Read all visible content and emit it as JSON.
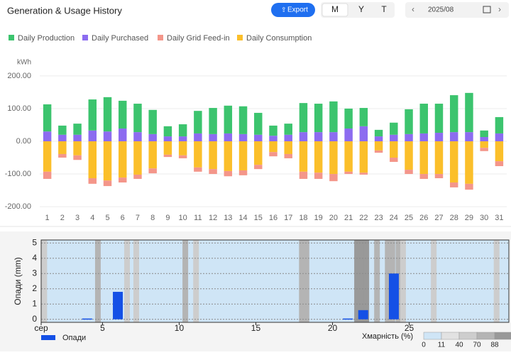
{
  "header": {
    "title": "Generation & Usage History",
    "export": "Export",
    "tabs": [
      "M",
      "Y",
      "T"
    ],
    "date": "2025/08"
  },
  "chart_data": [
    {
      "type": "bar",
      "stacked": true,
      "y_unit": "kWh",
      "grid": true,
      "categories": [
        1,
        2,
        3,
        4,
        5,
        6,
        7,
        8,
        9,
        10,
        11,
        12,
        13,
        14,
        15,
        16,
        17,
        18,
        19,
        20,
        21,
        22,
        23,
        24,
        25,
        26,
        27,
        28,
        29,
        30,
        31
      ],
      "series": [
        {
          "name": "Daily Production",
          "color": "#3cc46e",
          "values": [
            83,
            28,
            34,
            95,
            105,
            85,
            87,
            74,
            31,
            37,
            69,
            80,
            85,
            85,
            67,
            31,
            34,
            89,
            87,
            94,
            61,
            56,
            20,
            37,
            76,
            91,
            89,
            113,
            120,
            20,
            50
          ]
        },
        {
          "name": "Daily Purchased",
          "color": "#8c6cf0",
          "values": [
            30,
            20,
            20,
            33,
            30,
            39,
            28,
            22,
            15,
            15,
            24,
            22,
            24,
            22,
            20,
            17,
            20,
            28,
            28,
            28,
            39,
            46,
            15,
            20,
            22,
            24,
            26,
            28,
            28,
            13,
            24
          ]
        },
        {
          "name": "Daily Grid Feed-in",
          "color": "#f4968a",
          "values": [
            -22,
            -11,
            -14,
            -17,
            -17,
            -15,
            -13,
            -15,
            -7,
            -9,
            -13,
            -15,
            -16,
            -15,
            -13,
            -13,
            -13,
            -22,
            -19,
            -22,
            -7,
            -6,
            -7,
            -13,
            -13,
            -15,
            -13,
            -15,
            -18,
            -10,
            -15
          ]
        },
        {
          "name": "Daily Consumption",
          "color": "#fbbf2a",
          "values": [
            -93,
            -39,
            -43,
            -113,
            -120,
            -111,
            -102,
            -83,
            -41,
            -43,
            -80,
            -85,
            -91,
            -89,
            -72,
            -33,
            -39,
            -93,
            -96,
            -100,
            -93,
            -96,
            -28,
            -50,
            -87,
            -100,
            -100,
            -126,
            -130,
            -20,
            -61
          ]
        }
      ],
      "ylim": [
        -215,
        215
      ],
      "yticks": [
        {
          "value": 200,
          "label": "200.00"
        },
        {
          "value": 100,
          "label": "100.00"
        },
        {
          "value": 0,
          "label": "0.00"
        },
        {
          "value": -100,
          "label": "-100.00"
        },
        {
          "value": -200,
          "label": "-200.00"
        }
      ]
    },
    {
      "type": "bar",
      "ylabel": "Опади (mm)",
      "series": [
        {
          "name": "Опади",
          "color": "#1450e6",
          "x": [
            4,
            6,
            21,
            22,
            24
          ],
          "values": [
            0.05,
            1.8,
            0.05,
            0.6,
            3.0
          ]
        }
      ],
      "xlim": [
        1,
        31.5
      ],
      "xticks": [
        {
          "value": 1,
          "label": "сер"
        },
        5,
        10,
        15,
        20,
        25
      ],
      "ylim": [
        -0.2,
        5.2
      ],
      "yticks": [
        0,
        1,
        2,
        3,
        4,
        5
      ],
      "background": {
        "name": "Хмарність (%)",
        "x": [
          1.2,
          4.7,
          6.6,
          7.2,
          10.4,
          11.1,
          18.0,
          18.3,
          21.6,
          21.9,
          22.2,
          22.9,
          23.6,
          23.9,
          24.3,
          24.6,
          26.6,
          30.7
        ],
        "values": [
          40,
          70,
          40,
          40,
          70,
          40,
          70,
          70,
          88,
          88,
          88,
          70,
          70,
          70,
          70,
          40,
          40,
          40
        ],
        "scale_ticks": [
          0,
          11,
          40,
          70,
          88
        ],
        "scale_colors": [
          "#cfe5f6",
          "#e2e2e2",
          "#cdcdcd",
          "#b4b4b4",
          "#999999"
        ]
      }
    }
  ]
}
